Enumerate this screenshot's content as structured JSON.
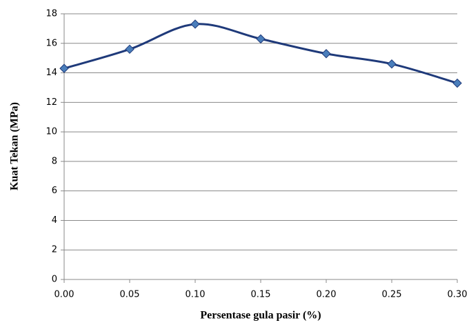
{
  "chart_data": {
    "type": "line",
    "xlabel": "Persentase gula pasir (%)",
    "ylabel": "Kuat Tekan (MPa)",
    "x": [
      0,
      0.05,
      0.1,
      0.15,
      0.2,
      0.25,
      0.3
    ],
    "series": [
      {
        "color": "#1f3a7a",
        "marker_color": "#4a7ebb",
        "values": [
          14.3,
          15.6,
          17.3,
          16.3,
          15.3,
          14.6,
          13.3
        ]
      }
    ],
    "xlim": [
      0,
      0.3
    ],
    "xticks": [
      {
        "value": 0,
        "label": "0.00"
      },
      0.05,
      {
        "value": 0.1,
        "label": "0.10"
      },
      0.15,
      {
        "value": 0.2,
        "label": "0.20"
      },
      0.25,
      {
        "value": 0.3,
        "label": "0.30"
      }
    ],
    "ylim": [
      0,
      18
    ],
    "yticks": [
      0,
      2,
      4,
      6,
      8,
      10,
      12,
      14,
      16,
      18
    ],
    "grid": true,
    "smooth": true
  }
}
